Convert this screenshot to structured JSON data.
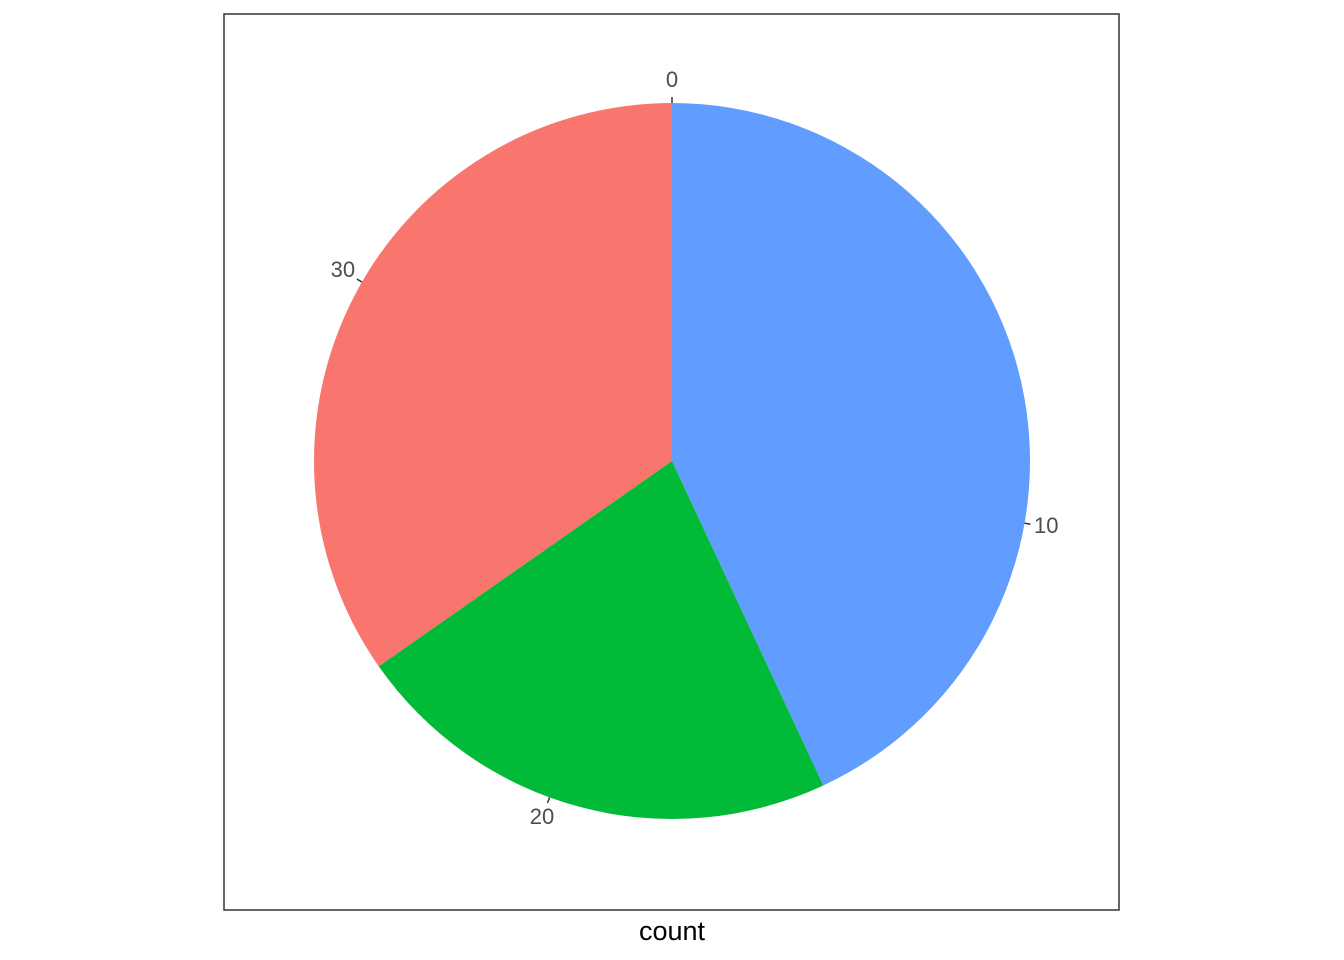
{
  "chart_data": {
    "type": "pie",
    "xlabel": "count",
    "ylabel": "",
    "title": "",
    "values": [
      15.5,
      8.0,
      12.5
    ],
    "colors": [
      "#619CFF",
      "#00BA38",
      "#F8766D"
    ],
    "tick_values": [
      0,
      10,
      20,
      30
    ],
    "tick_labels": [
      "0",
      "10",
      "20",
      "30"
    ],
    "legend": false,
    "panel_border": true
  }
}
